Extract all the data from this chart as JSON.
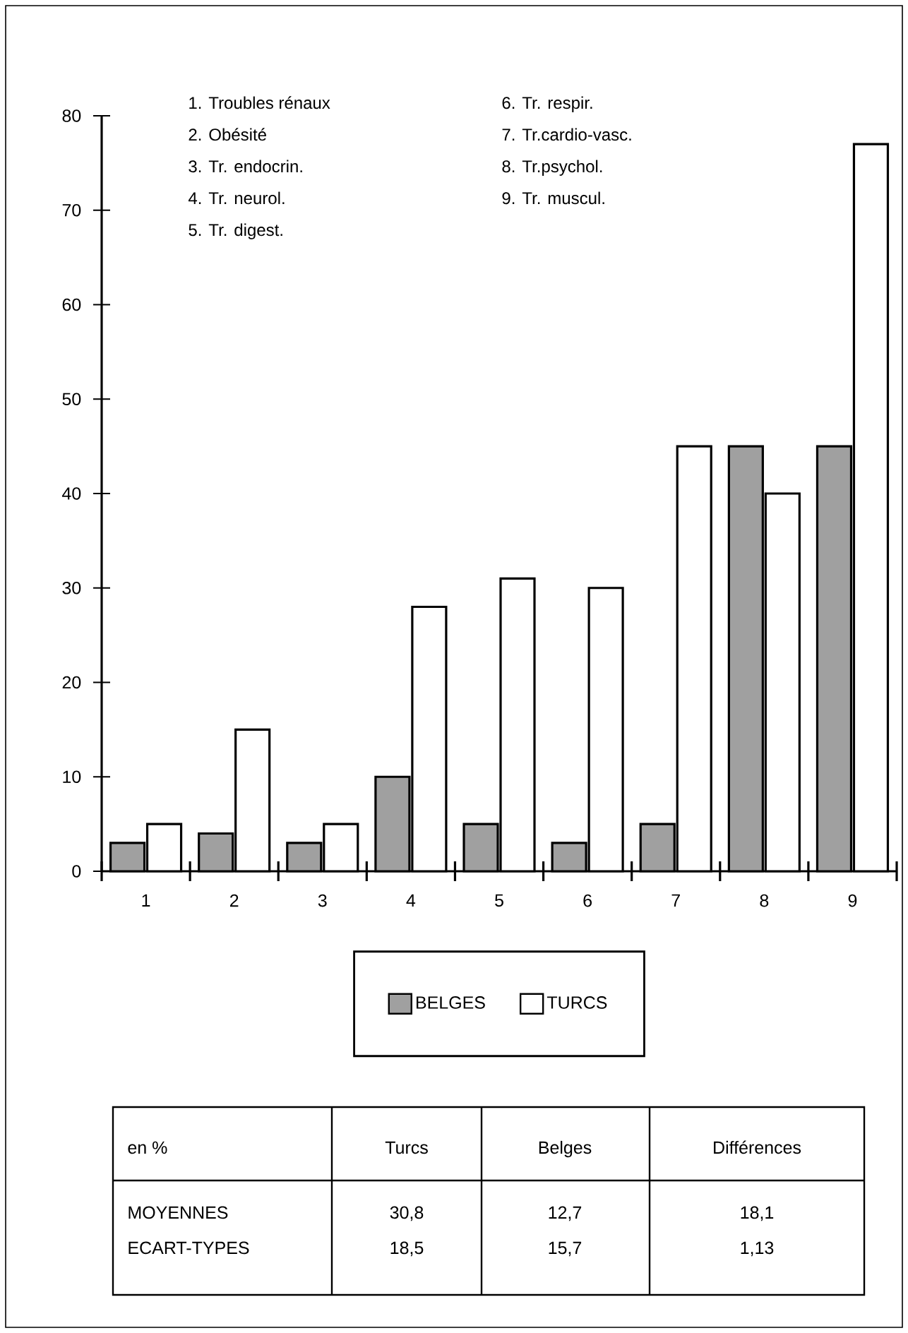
{
  "chart_data": {
    "type": "bar",
    "categories": [
      "1",
      "2",
      "3",
      "4",
      "5",
      "6",
      "7",
      "8",
      "9"
    ],
    "series": [
      {
        "name": "BELGES",
        "color": "#a0a0a0",
        "values": [
          3,
          4,
          3,
          10,
          5,
          3,
          5,
          45,
          45
        ]
      },
      {
        "name": "TURCS",
        "color": "#ffffff",
        "values": [
          5,
          15,
          5,
          28,
          31,
          30,
          45,
          40,
          77
        ]
      }
    ],
    "ylim": [
      0,
      80
    ],
    "yticks": [
      0,
      10,
      20,
      30,
      40,
      50,
      60,
      70,
      80
    ],
    "grid": false,
    "legend": "bottom",
    "annotations": [
      "1. Troubles rénaux",
      "2. Obésité",
      "3. Tr. endocrin.",
      "4. Tr. neurol.",
      "5. Tr. digest.",
      "6. Tr. respir.",
      "7. Tr.cardio-vasc.",
      "8. Tr.psychol.",
      "9. Tr. muscul.",
      "en %",
      "Turcs",
      "Belges",
      "Différences",
      "MOYENNES",
      "ECART-TYPES",
      "30,8",
      "18,5",
      "12,7",
      "15,7",
      "18,1",
      "1,13"
    ]
  }
}
